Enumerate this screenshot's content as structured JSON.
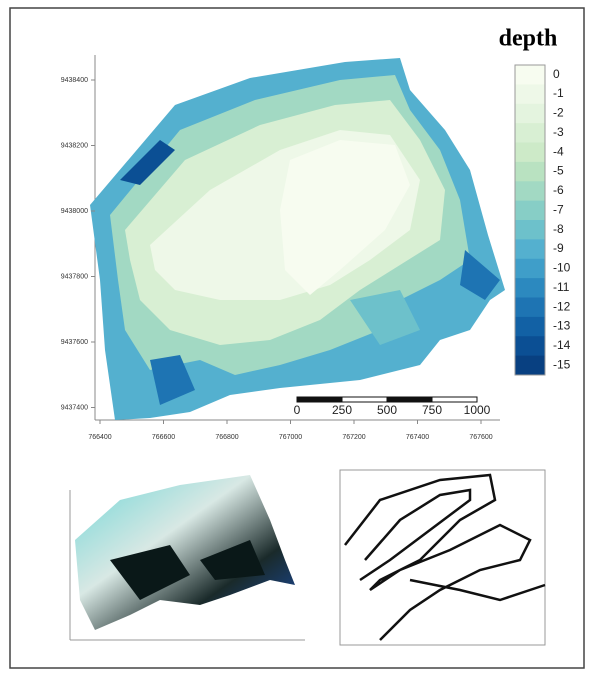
{
  "main_map": {
    "title": "depth",
    "legend": {
      "labels": [
        0,
        -1,
        -2,
        -3,
        -4,
        -5,
        -6,
        -7,
        -8,
        -9,
        -10,
        -11,
        -12,
        -13,
        -14,
        -15
      ],
      "colors": [
        "#f7fcf0",
        "#eef8e8",
        "#e4f4df",
        "#d8efd3",
        "#cdeac8",
        "#b9e2c1",
        "#a2d9c3",
        "#87cec6",
        "#6dc1cb",
        "#54b0cf",
        "#3f9ec9",
        "#2c89bf",
        "#1e74b3",
        "#1261a5",
        "#0b4f94",
        "#084081"
      ]
    },
    "y_ticks": [
      9438400,
      9438200,
      9438000,
      9437800,
      9437600,
      9437400
    ],
    "x_ticks": [
      766400,
      766600,
      766800,
      767000,
      767200,
      767400,
      767600
    ],
    "scale_bar": [
      0,
      250,
      500,
      750,
      1000
    ]
  }
}
